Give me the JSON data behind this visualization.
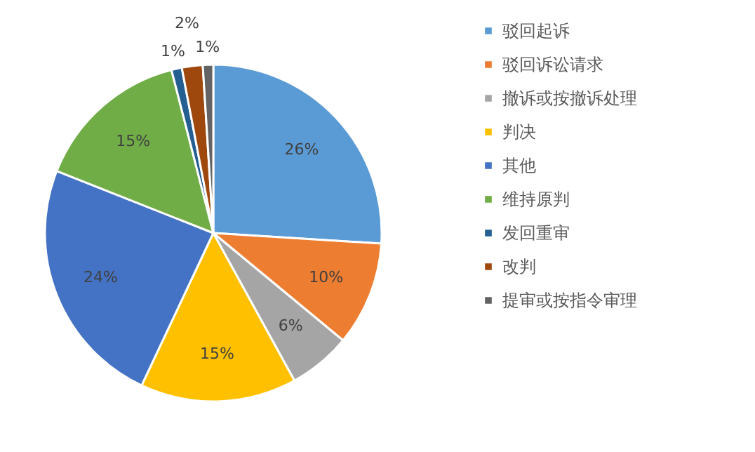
{
  "chart_data": {
    "type": "pie",
    "categories": [
      "驳回起诉",
      "驳回诉讼请求",
      "撤诉或按撤诉处理",
      "判决",
      "其他",
      "维持原判",
      "发回重审",
      "改判",
      "提审或按指令审理"
    ],
    "values": [
      26,
      10,
      6,
      15,
      24,
      15,
      1,
      2,
      1
    ],
    "colors": [
      "#5b9bd5",
      "#ed7d31",
      "#a5a5a5",
      "#ffc000",
      "#4472c4",
      "#70ad47",
      "#255e91",
      "#9e480e",
      "#636363"
    ],
    "value_labels": [
      "26%",
      "10%",
      "6%",
      "15%",
      "24%",
      "15%",
      "1%",
      "2%",
      "1%"
    ],
    "legend": "right"
  }
}
